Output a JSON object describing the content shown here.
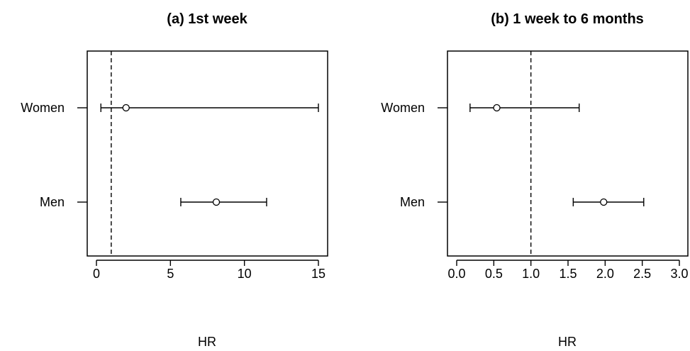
{
  "chart_data": [
    {
      "type": "forest",
      "title": "(a) 1st week",
      "xlabel": "HR",
      "xlim": [
        0,
        15
      ],
      "xticks": [
        0,
        5,
        10,
        15
      ],
      "xtick_labels": [
        "0",
        "5",
        "10",
        "15"
      ],
      "reference_line": 1,
      "categories": [
        "Women",
        "Men"
      ],
      "estimates": [
        {
          "label": "Women",
          "hr": 2.0,
          "ci_low": 0.3,
          "ci_high": 15.0
        },
        {
          "label": "Men",
          "hr": 8.1,
          "ci_low": 5.7,
          "ci_high": 11.5
        }
      ]
    },
    {
      "type": "forest",
      "title": "(b) 1 week to 6 months",
      "xlabel": "HR",
      "xlim": [
        0,
        3
      ],
      "xticks": [
        0,
        0.5,
        1,
        1.5,
        2,
        2.5,
        3
      ],
      "xtick_labels": [
        "0.0",
        "0.5",
        "1.0",
        "1.5",
        "2.0",
        "2.5",
        "3.0"
      ],
      "reference_line": 1,
      "categories": [
        "Women",
        "Men"
      ],
      "estimates": [
        {
          "label": "Women",
          "hr": 0.54,
          "ci_low": 0.18,
          "ci_high": 1.65
        },
        {
          "label": "Men",
          "hr": 1.98,
          "ci_low": 1.57,
          "ci_high": 2.52
        }
      ]
    }
  ]
}
